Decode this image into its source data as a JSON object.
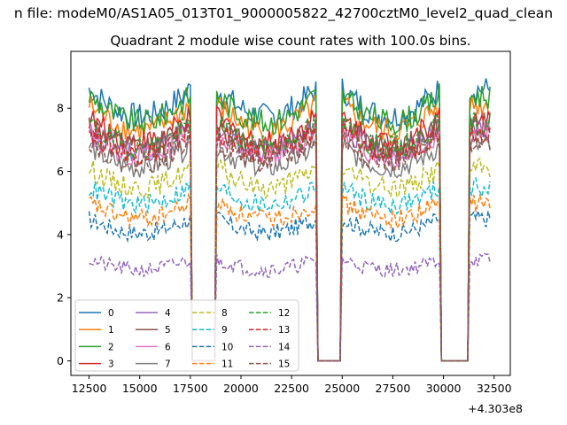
{
  "chart_data": {
    "type": "line",
    "suptitle": "...n file: modeM0/AS1A05_013T01_9000005822_42700cztM0_level2_quad_clean...",
    "suptitle_visible": "n file: modeM0/AS1A05_013T01_9000005822_42700cztM0_level2_quad_clean",
    "title": "Quadrant 2 module wise count rates with 100.0s bins.",
    "xlabel": "",
    "ylabel": "",
    "x_offset_label": "+4.303e8",
    "xlim": [
      11600,
      33300
    ],
    "ylim": [
      -0.46,
      9.8
    ],
    "xticks": [
      12500,
      15000,
      17500,
      20000,
      22500,
      25000,
      27500,
      30000,
      32500
    ],
    "xtick_labels": [
      "12500",
      "15000",
      "17500",
      "20000",
      "22500",
      "25000",
      "27500",
      "30000",
      "32500"
    ],
    "yticks": [
      0,
      2,
      4,
      6,
      8
    ],
    "ytick_labels": [
      "0",
      "2",
      "4",
      "6",
      "8"
    ],
    "time_range": [
      12500,
      32300
    ],
    "bin_size_s": 100,
    "data_segments": [
      [
        12500,
        17500
      ],
      [
        18800,
        23700
      ],
      [
        25000,
        29800
      ],
      [
        31300,
        32300
      ]
    ],
    "gap_segments": [
      [
        17500,
        18800
      ],
      [
        23700,
        25000
      ],
      [
        29800,
        31300
      ]
    ],
    "legend": {
      "location": "lower-left",
      "columns": 4,
      "entries": [
        "0",
        "1",
        "2",
        "3",
        "4",
        "5",
        "6",
        "7",
        "8",
        "9",
        "10",
        "11",
        "12",
        "13",
        "14",
        "15"
      ]
    },
    "series": [
      {
        "name": "0",
        "color": "#1f77b4",
        "style": "solid",
        "level": 8.6
      },
      {
        "name": "1",
        "color": "#ff7f0e",
        "style": "solid",
        "level": 8.1
      },
      {
        "name": "2",
        "color": "#2ca02c",
        "style": "solid",
        "level": 8.4
      },
      {
        "name": "3",
        "color": "#d62728",
        "style": "solid",
        "level": 7.7
      },
      {
        "name": "4",
        "color": "#9467bd",
        "style": "solid",
        "level": 7.4
      },
      {
        "name": "5",
        "color": "#8c564b",
        "style": "solid",
        "level": 7.5
      },
      {
        "name": "6",
        "color": "#e377c2",
        "style": "solid",
        "level": 7.2
      },
      {
        "name": "7",
        "color": "#7f7f7f",
        "style": "solid",
        "level": 6.8
      },
      {
        "name": "8",
        "color": "#bcbd22",
        "style": "dashed",
        "level": 6.1
      },
      {
        "name": "9",
        "color": "#17becf",
        "style": "dashed",
        "level": 5.5
      },
      {
        "name": "10",
        "color": "#1f77b4",
        "style": "dashed",
        "level": 4.5
      },
      {
        "name": "11",
        "color": "#ff7f0e",
        "style": "dashed",
        "level": 5.0
      },
      {
        "name": "12",
        "color": "#2ca02c",
        "style": "dashed",
        "level": 7.5
      },
      {
        "name": "13",
        "color": "#d62728",
        "style": "dashed",
        "level": 7.3
      },
      {
        "name": "14",
        "color": "#9467bd",
        "style": "dashed",
        "level": 3.2
      },
      {
        "name": "15",
        "color": "#8c564b",
        "style": "dashed",
        "level": 7.0
      }
    ]
  }
}
